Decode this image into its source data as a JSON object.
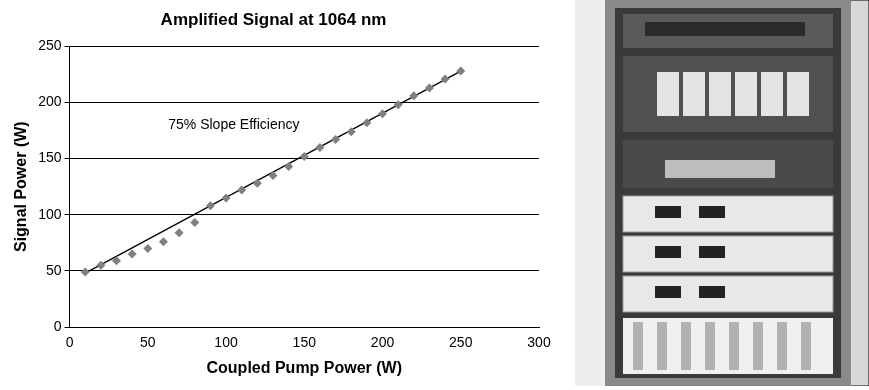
{
  "chart_data": {
    "type": "scatter",
    "title": "Amplified Signal at 1064 nm",
    "x_label": "Coupled Pump Power (W)",
    "y_label": "Signal Power (W)",
    "annotation": "75% Slope Efficiency",
    "xlim": [
      0,
      300
    ],
    "xticks": [
      0,
      50,
      100,
      150,
      200,
      250,
      300
    ],
    "ylim": [
      0,
      250
    ],
    "yticks": [
      0,
      50,
      100,
      150,
      200,
      250
    ],
    "grid": "y",
    "series": [
      {
        "type": "scatter",
        "marker": "diamond",
        "color": "#808080",
        "x": [
          10,
          20,
          30,
          40,
          50,
          60,
          70,
          80,
          90,
          100,
          110,
          120,
          130,
          140,
          150,
          160,
          170,
          180,
          190,
          200,
          210,
          220,
          230,
          240,
          250
        ],
        "values": [
          49,
          55,
          59,
          65,
          70,
          76,
          84,
          93,
          108,
          115,
          122,
          128,
          135,
          143,
          152,
          160,
          167,
          174,
          182,
          190,
          198,
          206,
          213,
          221,
          228
        ]
      },
      {
        "type": "line",
        "line_style": "solid",
        "color": "#000000",
        "x": [
          10,
          250
        ],
        "values": [
          48,
          228
        ]
      }
    ]
  }
}
